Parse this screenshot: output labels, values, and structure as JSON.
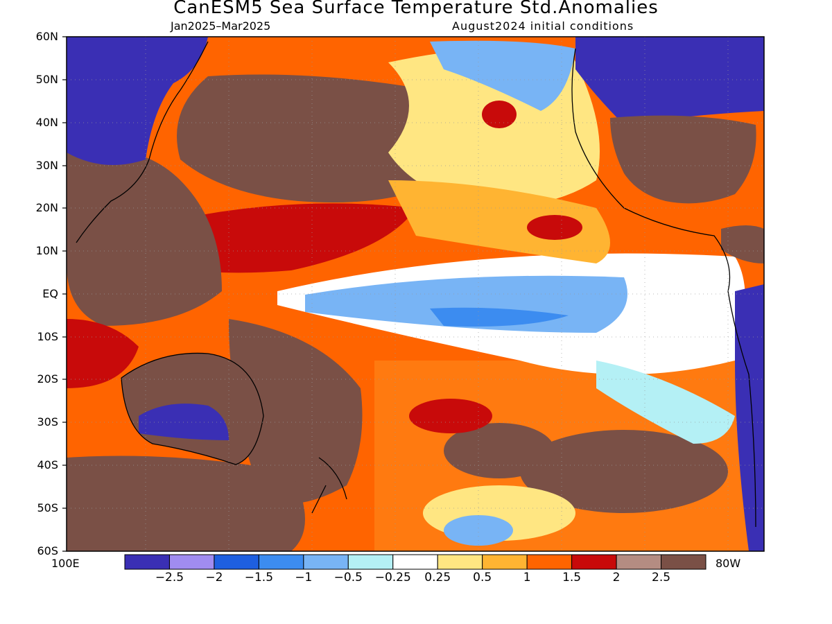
{
  "title": "CanESM5 Sea Surface Temperature Std.Anomalies",
  "subtitle_left": "Jan2025–Mar2025",
  "subtitle_right": "August2024 initial conditions",
  "lat_labels": [
    "60N",
    "50N",
    "40N",
    "30N",
    "20N",
    "10N",
    "EQ",
    "10S",
    "20S",
    "30S",
    "40S",
    "50S",
    "60S"
  ],
  "lon_labels": {
    "left": "100E",
    "right": "80W"
  },
  "colorbar": {
    "colors": [
      "#3a2fb4",
      "#a08cf0",
      "#1e5fe0",
      "#3c8cf0",
      "#78b4f5",
      "#b4f0f5",
      "#ffffff",
      "#ffe682",
      "#ffb432",
      "#ff6400",
      "#c80a0a",
      "#b48c82",
      "#7a5046"
    ],
    "labels": [
      "−2.5",
      "−2",
      "−1.5",
      "−1",
      "−0.5",
      "−0.25",
      "0.25",
      "0.5",
      "1",
      "1.5",
      "2",
      "2.5"
    ]
  },
  "land_color": "#7a5046"
}
